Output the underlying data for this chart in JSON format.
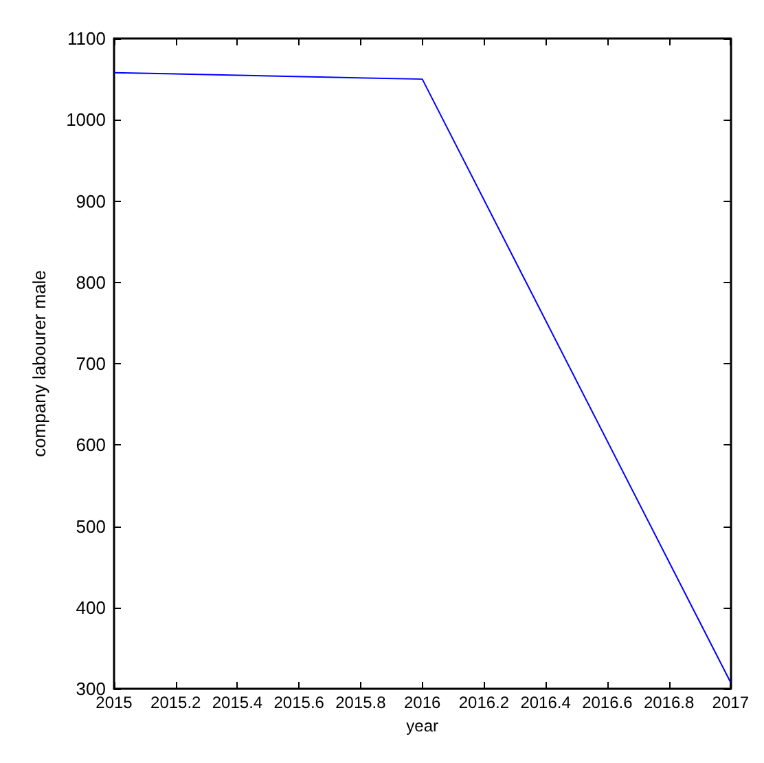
{
  "chart_data": {
    "type": "line",
    "xlabel": "year",
    "ylabel": "company labourer male",
    "x": [
      2015,
      2016,
      2017
    ],
    "series": [
      {
        "color": "#0000ff",
        "values": [
          1058,
          1050,
          308
        ]
      }
    ],
    "xlim": [
      2015,
      2017
    ],
    "xticks": [
      2015,
      2015.2,
      2015.4,
      2015.6,
      2015.8,
      2016,
      2016.2,
      2016.4,
      2016.6,
      2016.8,
      2017
    ],
    "ylim": [
      300,
      1100
    ],
    "yticks": [
      300,
      400,
      500,
      600,
      700,
      800,
      900,
      1000,
      1100
    ],
    "grid": false,
    "marker": "none",
    "line_style": "solid"
  }
}
